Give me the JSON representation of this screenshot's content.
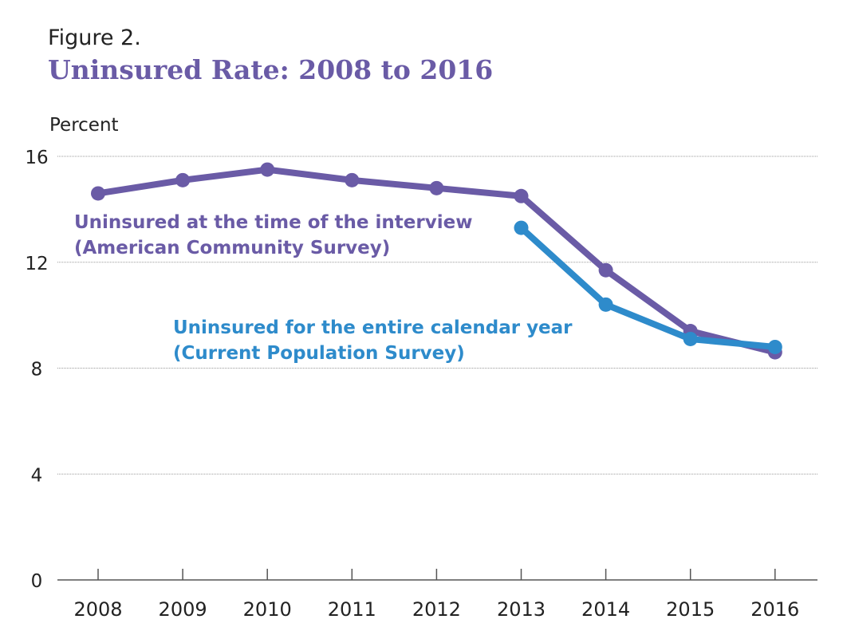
{
  "figure_label": "Figure 2.",
  "title": "Uninsured Rate: 2008 to 2016",
  "colors": {
    "acs": "#6a5ba6",
    "cps": "#2e8bcb",
    "grid": "#9a9a9a",
    "axis": "#555555",
    "text": "#222222"
  },
  "chart_data": {
    "type": "line",
    "ylabel": "Percent",
    "xlabel": "",
    "ylim": [
      0,
      16
    ],
    "yticks": [
      0,
      4,
      8,
      12,
      16
    ],
    "x": [
      "2008",
      "2009",
      "2010",
      "2011",
      "2012",
      "2013",
      "2014",
      "2015",
      "2016"
    ],
    "grid": true,
    "series": [
      {
        "name_lines": [
          "Uninsured at the time of the interview",
          "(American Community Survey)"
        ],
        "values": [
          14.6,
          15.1,
          15.5,
          15.1,
          14.8,
          14.5,
          11.7,
          9.4,
          8.6
        ]
      },
      {
        "name_lines": [
          "Uninsured for the entire calendar year",
          "(Current Population Survey)"
        ],
        "values": [
          null,
          null,
          null,
          null,
          null,
          13.3,
          10.4,
          9.1,
          8.8
        ]
      }
    ]
  }
}
